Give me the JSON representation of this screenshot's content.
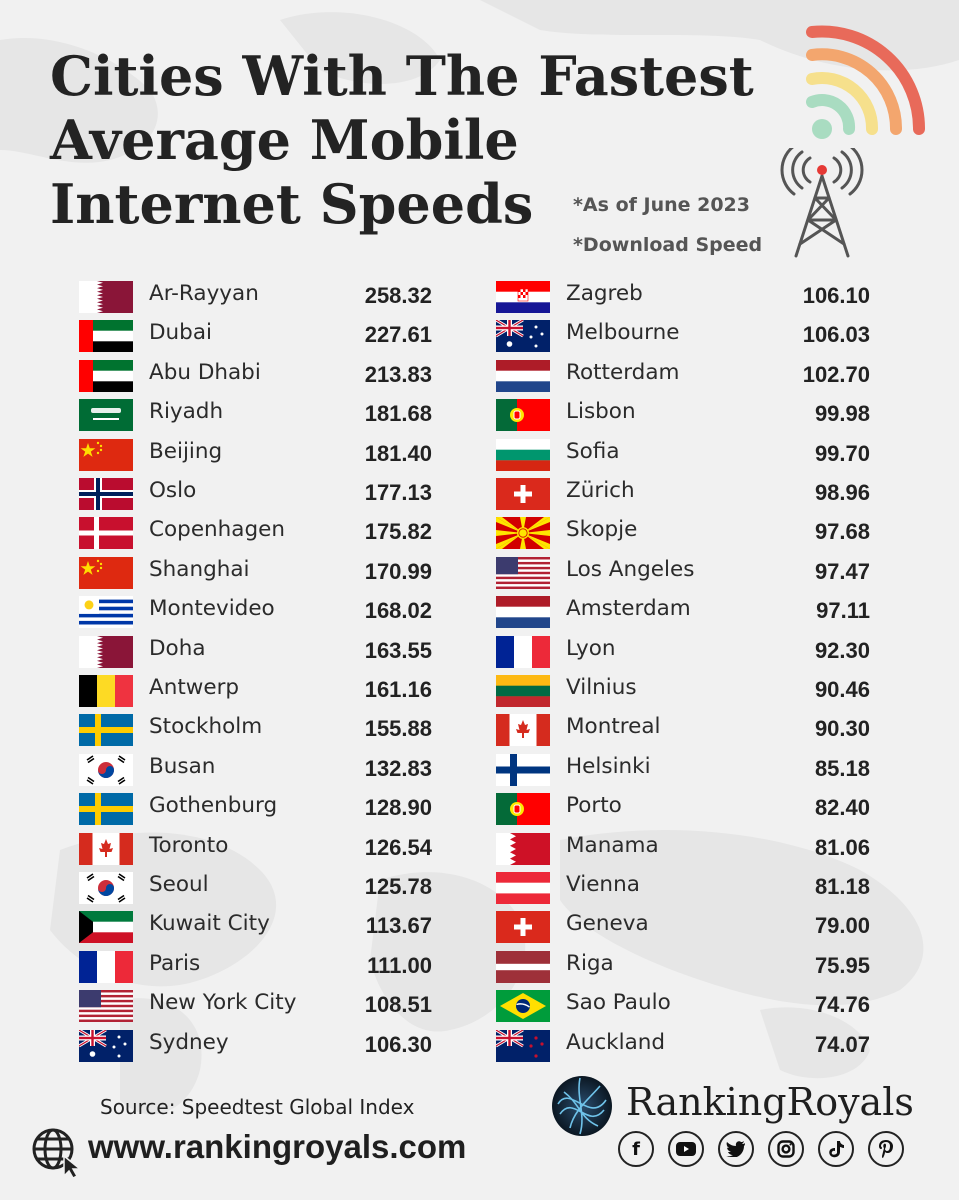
{
  "title": {
    "line1": "Cities With The Fastest",
    "line2": "Average Mobile",
    "line3": "Internet Speeds"
  },
  "notes": {
    "as_of": "*As of June 2023",
    "metric": "*Download Speed"
  },
  "left_column": [
    {
      "flag": "qatar",
      "city": "Ar-Rayyan",
      "speed": "258.32"
    },
    {
      "flag": "uae",
      "city": "Dubai",
      "speed": "227.61"
    },
    {
      "flag": "uae",
      "city": "Abu Dhabi",
      "speed": "213.83"
    },
    {
      "flag": "saudi",
      "city": "Riyadh",
      "speed": "181.68"
    },
    {
      "flag": "china",
      "city": "Beijing",
      "speed": "181.40"
    },
    {
      "flag": "norway",
      "city": "Oslo",
      "speed": "177.13"
    },
    {
      "flag": "denmark",
      "city": "Copenhagen",
      "speed": "175.82"
    },
    {
      "flag": "china",
      "city": "Shanghai",
      "speed": "170.99"
    },
    {
      "flag": "uruguay",
      "city": "Montevideo",
      "speed": "168.02"
    },
    {
      "flag": "qatar",
      "city": "Doha",
      "speed": "163.55"
    },
    {
      "flag": "belgium",
      "city": "Antwerp",
      "speed": "161.16"
    },
    {
      "flag": "sweden",
      "city": "Stockholm",
      "speed": "155.88"
    },
    {
      "flag": "korea",
      "city": "Busan",
      "speed": "132.83"
    },
    {
      "flag": "sweden",
      "city": "Gothenburg",
      "speed": "128.90"
    },
    {
      "flag": "canada",
      "city": "Toronto",
      "speed": "126.54"
    },
    {
      "flag": "korea",
      "city": "Seoul",
      "speed": "125.78"
    },
    {
      "flag": "kuwait",
      "city": "Kuwait City",
      "speed": "113.67"
    },
    {
      "flag": "france",
      "city": "Paris",
      "speed": "111.00"
    },
    {
      "flag": "usa",
      "city": "New York City",
      "speed": "108.51"
    },
    {
      "flag": "australia",
      "city": "Sydney",
      "speed": "106.30"
    }
  ],
  "right_column": [
    {
      "flag": "croatia",
      "city": "Zagreb",
      "speed": "106.10"
    },
    {
      "flag": "australia",
      "city": "Melbourne",
      "speed": "106.03"
    },
    {
      "flag": "netherlands",
      "city": "Rotterdam",
      "speed": "102.70"
    },
    {
      "flag": "portugal",
      "city": "Lisbon",
      "speed": "99.98"
    },
    {
      "flag": "bulgaria",
      "city": "Sofia",
      "speed": "99.70"
    },
    {
      "flag": "switzerland",
      "city": "Zürich",
      "speed": "98.96"
    },
    {
      "flag": "macedonia",
      "city": "Skopje",
      "speed": "97.68"
    },
    {
      "flag": "usa",
      "city": "Los Angeles",
      "speed": "97.47"
    },
    {
      "flag": "netherlands",
      "city": "Amsterdam",
      "speed": "97.11"
    },
    {
      "flag": "france",
      "city": "Lyon",
      "speed": "92.30"
    },
    {
      "flag": "lithuania",
      "city": "Vilnius",
      "speed": "90.46"
    },
    {
      "flag": "canada",
      "city": "Montreal",
      "speed": "90.30"
    },
    {
      "flag": "finland",
      "city": "Helsinki",
      "speed": "85.18"
    },
    {
      "flag": "portugal",
      "city": "Porto",
      "speed": "82.40"
    },
    {
      "flag": "bahrain",
      "city": "Manama",
      "speed": "81.06"
    },
    {
      "flag": "austria",
      "city": "Vienna",
      "speed": "81.18"
    },
    {
      "flag": "switzerland",
      "city": "Geneva",
      "speed": "79.00"
    },
    {
      "flag": "latvia",
      "city": "Riga",
      "speed": "75.95"
    },
    {
      "flag": "brazil",
      "city": "Sao Paulo",
      "speed": "74.76"
    },
    {
      "flag": "newzealand",
      "city": "Auckland",
      "speed": "74.07"
    }
  ],
  "footer": {
    "source": "Source: Speedtest Global Index",
    "website": "www.rankingroyals.com",
    "brand": "RankingRoyals",
    "socials": [
      "facebook-icon",
      "youtube-icon",
      "twitter-icon",
      "instagram-icon",
      "tiktok-icon",
      "pinterest-icon"
    ]
  },
  "colors": {
    "background": "#f1f1f1",
    "wifi_red": "#e86a5a",
    "wifi_orange": "#f3a66e",
    "wifi_yellow": "#f6e08c",
    "wifi_green": "#a9dcc1"
  }
}
